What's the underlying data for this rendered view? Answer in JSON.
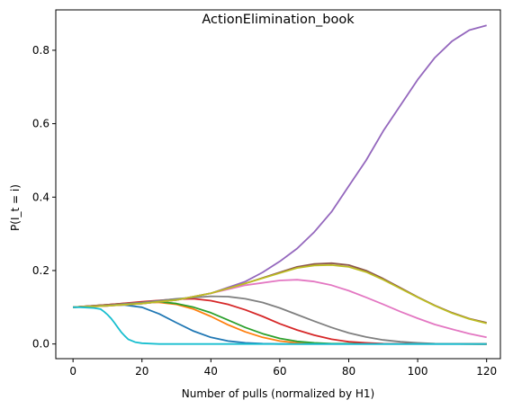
{
  "chart_data": {
    "type": "line",
    "title": "ActionElimination_book",
    "xlabel": "Number of pulls (normalized by H1)",
    "ylabel": "P(I_t = i)",
    "xlim": [
      -5,
      124
    ],
    "ylim": [
      -0.04,
      0.91
    ],
    "xticks": [
      0,
      20,
      40,
      60,
      80,
      100,
      120
    ],
    "yticks": [
      0.0,
      0.2,
      0.4,
      0.6,
      0.8
    ],
    "grid": false,
    "legend": "none",
    "series": [
      {
        "color": "#1f77b4",
        "x": [
          0,
          5,
          10,
          15,
          20,
          25,
          30,
          35,
          40,
          45,
          50,
          55,
          60,
          120
        ],
        "y": [
          0.1,
          0.103,
          0.106,
          0.106,
          0.1,
          0.082,
          0.058,
          0.035,
          0.018,
          0.008,
          0.003,
          0.001,
          0,
          0
        ]
      },
      {
        "color": "#ff7f0e",
        "x": [
          0,
          10,
          20,
          25,
          30,
          35,
          40,
          45,
          50,
          55,
          60,
          65,
          70,
          120
        ],
        "y": [
          0.1,
          0.107,
          0.113,
          0.113,
          0.108,
          0.095,
          0.075,
          0.052,
          0.033,
          0.018,
          0.008,
          0.003,
          0.001,
          0
        ]
      },
      {
        "color": "#2ca02c",
        "x": [
          0,
          10,
          20,
          25,
          30,
          35,
          40,
          45,
          50,
          55,
          60,
          65,
          70,
          75,
          120
        ],
        "y": [
          0.1,
          0.107,
          0.114,
          0.115,
          0.11,
          0.1,
          0.085,
          0.065,
          0.045,
          0.028,
          0.015,
          0.007,
          0.003,
          0.001,
          0
        ]
      },
      {
        "color": "#d62728",
        "x": [
          0,
          10,
          20,
          30,
          35,
          40,
          45,
          50,
          55,
          60,
          65,
          70,
          75,
          80,
          85,
          90,
          120
        ],
        "y": [
          0.1,
          0.107,
          0.115,
          0.122,
          0.123,
          0.118,
          0.108,
          0.093,
          0.075,
          0.055,
          0.038,
          0.024,
          0.013,
          0.006,
          0.003,
          0.001,
          0
        ]
      },
      {
        "color": "#9467bd",
        "x": [
          0,
          10,
          20,
          30,
          40,
          50,
          55,
          60,
          65,
          70,
          75,
          80,
          85,
          90,
          95,
          100,
          105,
          110,
          115,
          120
        ],
        "y": [
          0.1,
          0.104,
          0.11,
          0.12,
          0.138,
          0.17,
          0.195,
          0.225,
          0.26,
          0.305,
          0.36,
          0.43,
          0.5,
          0.58,
          0.65,
          0.72,
          0.78,
          0.825,
          0.855,
          0.868
        ]
      },
      {
        "color": "#8c564b",
        "x": [
          0,
          10,
          20,
          30,
          40,
          50,
          60,
          65,
          70,
          75,
          80,
          85,
          90,
          95,
          100,
          105,
          110,
          115,
          120
        ],
        "y": [
          0.1,
          0.104,
          0.11,
          0.12,
          0.138,
          0.165,
          0.195,
          0.21,
          0.218,
          0.22,
          0.215,
          0.2,
          0.178,
          0.153,
          0.128,
          0.105,
          0.085,
          0.069,
          0.058
        ]
      },
      {
        "color": "#e377c2",
        "x": [
          0,
          10,
          20,
          30,
          40,
          50,
          60,
          65,
          70,
          75,
          80,
          85,
          90,
          95,
          100,
          105,
          110,
          115,
          120
        ],
        "y": [
          0.1,
          0.104,
          0.11,
          0.12,
          0.138,
          0.16,
          0.173,
          0.175,
          0.17,
          0.16,
          0.145,
          0.127,
          0.108,
          0.088,
          0.07,
          0.053,
          0.04,
          0.028,
          0.018
        ]
      },
      {
        "color": "#7f7f7f",
        "x": [
          0,
          10,
          20,
          30,
          40,
          45,
          50,
          55,
          60,
          65,
          70,
          75,
          80,
          85,
          90,
          95,
          100,
          105,
          120
        ],
        "y": [
          0.1,
          0.106,
          0.113,
          0.123,
          0.13,
          0.129,
          0.123,
          0.113,
          0.098,
          0.08,
          0.062,
          0.045,
          0.03,
          0.019,
          0.011,
          0.006,
          0.003,
          0.001,
          0
        ]
      },
      {
        "color": "#bcbd22",
        "x": [
          0,
          10,
          20,
          30,
          40,
          50,
          60,
          65,
          70,
          75,
          80,
          85,
          90,
          95,
          100,
          105,
          110,
          115,
          120
        ],
        "y": [
          0.1,
          0.104,
          0.11,
          0.12,
          0.138,
          0.165,
          0.193,
          0.207,
          0.214,
          0.215,
          0.21,
          0.196,
          0.175,
          0.151,
          0.127,
          0.104,
          0.084,
          0.068,
          0.056
        ]
      },
      {
        "color": "#17becf",
        "x": [
          0,
          2,
          4,
          6,
          8,
          9,
          10,
          11,
          12,
          13,
          14,
          15,
          16,
          18,
          20,
          25,
          30,
          120
        ],
        "y": [
          0.1,
          0.1,
          0.099,
          0.098,
          0.095,
          0.088,
          0.08,
          0.07,
          0.058,
          0.045,
          0.032,
          0.022,
          0.013,
          0.005,
          0.002,
          0,
          0,
          0
        ]
      }
    ]
  }
}
